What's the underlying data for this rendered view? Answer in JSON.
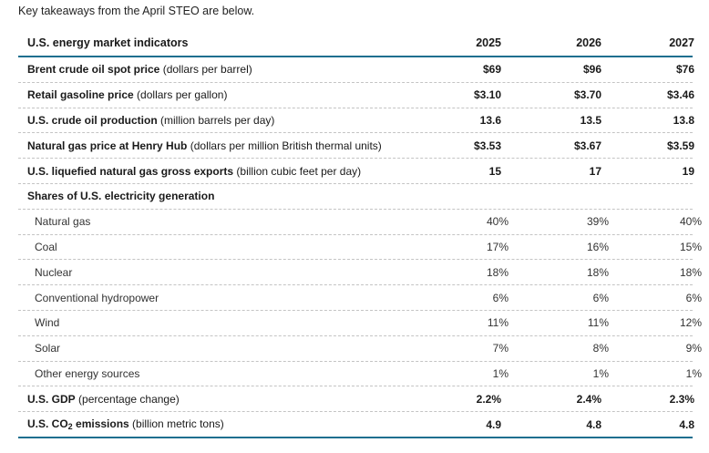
{
  "intro": "Key takeaways from the April STEO are below.",
  "table": {
    "header": {
      "label": "U.S. energy market indicators",
      "years": [
        "2025",
        "2026",
        "2027"
      ]
    },
    "rows": [
      {
        "type": "main",
        "name": "Brent crude oil spot price",
        "unit": " (dollars per barrel)",
        "values": [
          "$69",
          "$96",
          "$76"
        ]
      },
      {
        "type": "main",
        "name": "Retail gasoline price",
        "unit": " (dollars per gallon)",
        "values": [
          "$3.10",
          "$3.70",
          "$3.46"
        ]
      },
      {
        "type": "main",
        "name": "U.S. crude oil production",
        "unit": " (million barrels per day)",
        "values": [
          "13.6",
          "13.5",
          "13.8"
        ]
      },
      {
        "type": "main",
        "name": "Natural gas price at Henry Hub",
        "unit": " (dollars per million British thermal units)",
        "values": [
          "$3.53",
          "$3.67",
          "$3.59"
        ]
      },
      {
        "type": "main",
        "name": "U.S. liquefied natural gas gross exports",
        "unit": " (billion cubic feet per day)",
        "values": [
          "15",
          "17",
          "19"
        ]
      },
      {
        "type": "section",
        "name": "Shares of U.S. electricity generation",
        "unit": "",
        "values": [
          "",
          "",
          ""
        ]
      },
      {
        "type": "sub",
        "name": "Natural gas",
        "unit": "",
        "values": [
          "40%",
          "39%",
          "40%"
        ]
      },
      {
        "type": "sub",
        "name": "Coal",
        "unit": "",
        "values": [
          "17%",
          "16%",
          "15%"
        ]
      },
      {
        "type": "sub",
        "name": "Nuclear",
        "unit": "",
        "values": [
          "18%",
          "18%",
          "18%"
        ]
      },
      {
        "type": "sub",
        "name": "Conventional hydropower",
        "unit": "",
        "values": [
          "6%",
          "6%",
          "6%"
        ]
      },
      {
        "type": "sub",
        "name": "Wind",
        "unit": "",
        "values": [
          "11%",
          "11%",
          "12%"
        ]
      },
      {
        "type": "sub",
        "name": "Solar",
        "unit": "",
        "values": [
          "7%",
          "8%",
          "9%"
        ]
      },
      {
        "type": "sub",
        "name": "Other energy sources",
        "unit": "",
        "values": [
          "1%",
          "1%",
          "1%"
        ]
      },
      {
        "type": "main",
        "name": "U.S. GDP",
        "unit": " (percentage change)",
        "values": [
          "2.2%",
          "2.4%",
          "2.3%"
        ]
      },
      {
        "type": "main",
        "name": "U.S. CO",
        "name_sub": "2",
        "name_after": " emissions",
        "unit": " (billion metric tons)",
        "values": [
          "4.9",
          "4.8",
          "4.8"
        ]
      }
    ]
  }
}
